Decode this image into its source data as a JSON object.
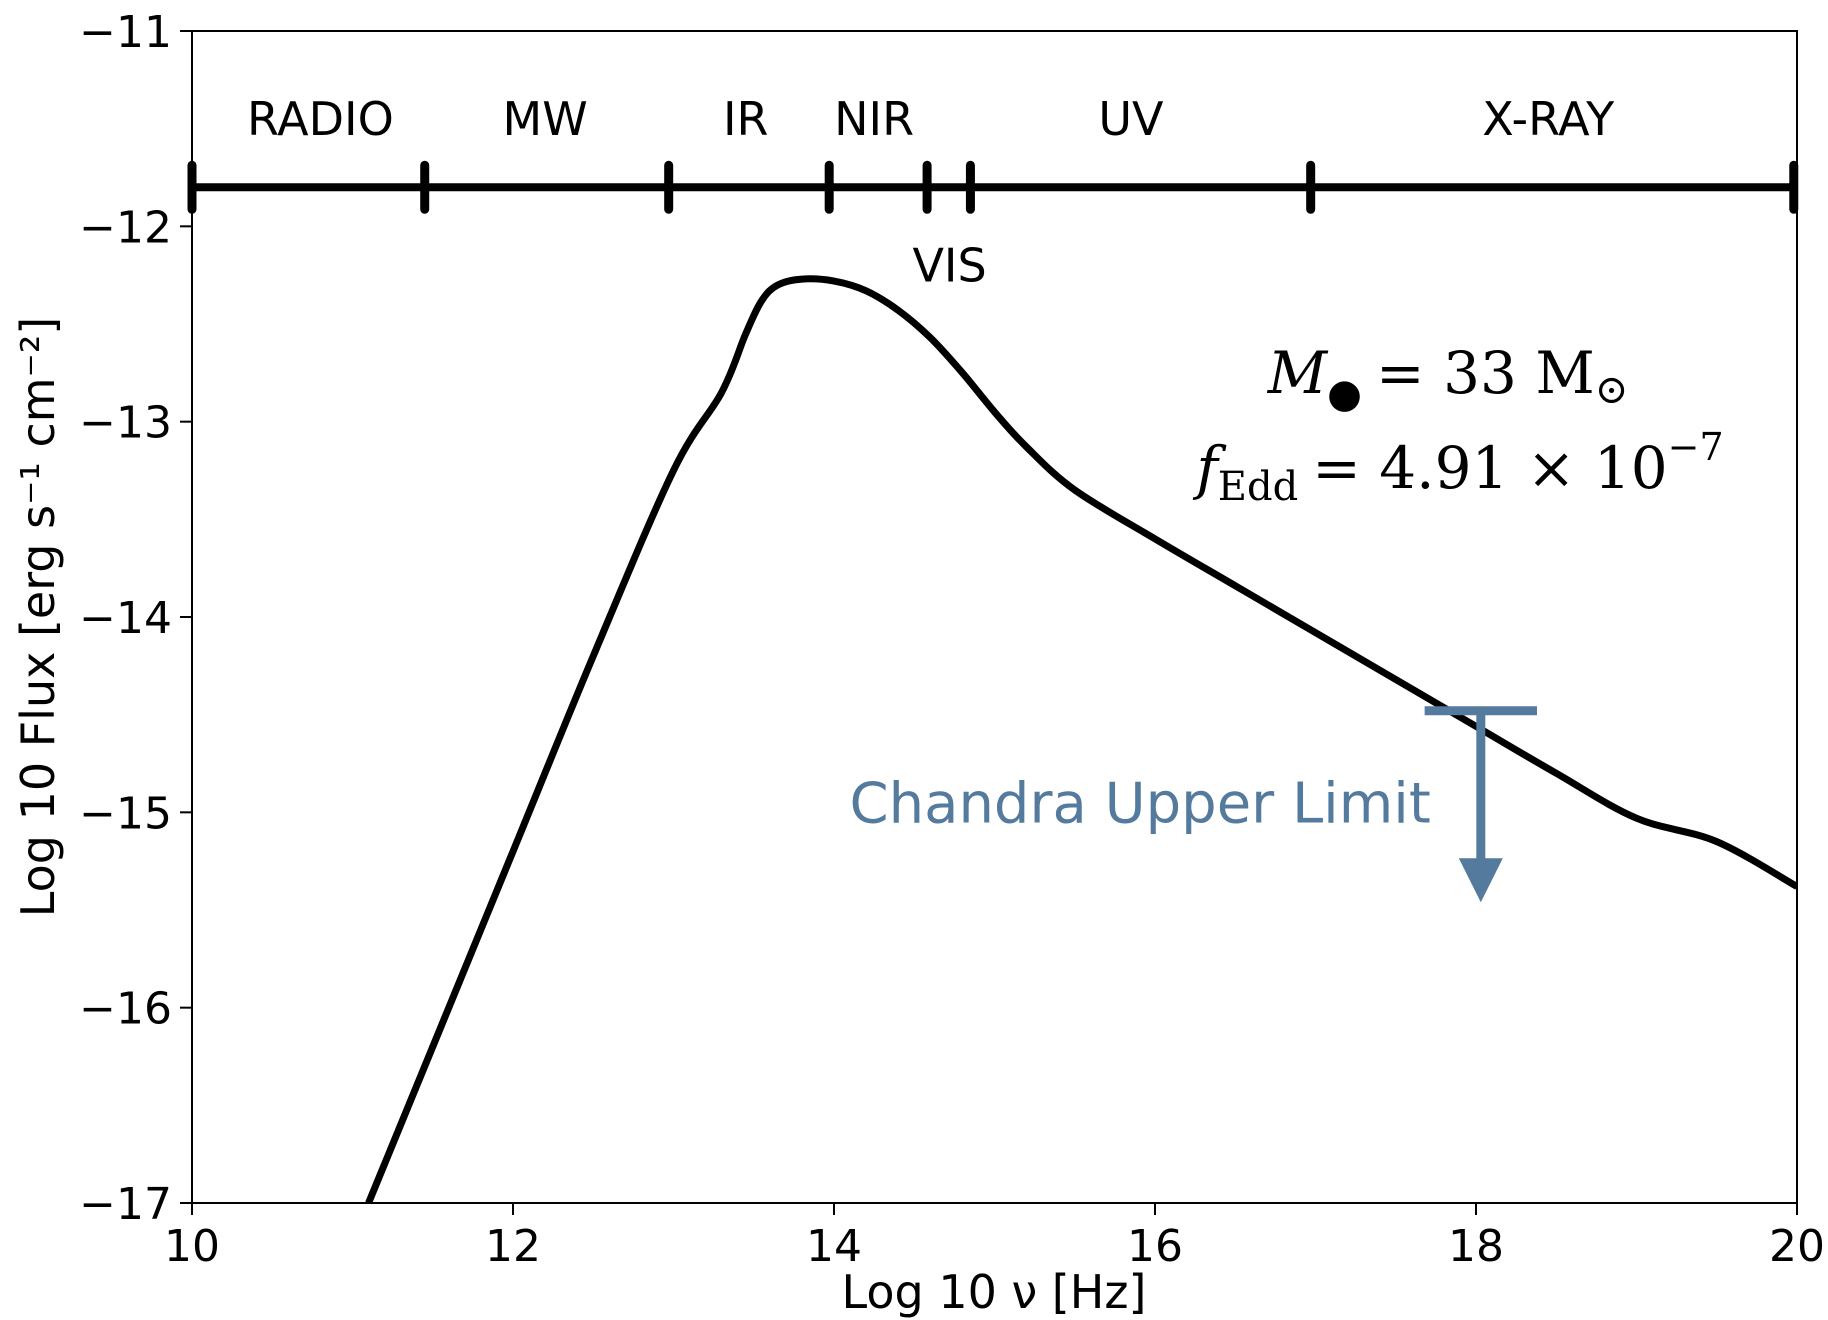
{
  "chart_data": {
    "type": "line",
    "xlabel": "Log 10 ν [Hz]",
    "ylabel": "Log 10 Flux [erg s⁻¹ cm⁻²]",
    "xlim": [
      10,
      20
    ],
    "ylim": [
      -17,
      -11
    ],
    "xticks": [
      10,
      12,
      14,
      16,
      18,
      20
    ],
    "yticks": [
      -11,
      -12,
      -13,
      -14,
      -15,
      -16,
      -17
    ],
    "xtick_labels": [
      "10",
      "12",
      "14",
      "16",
      "18",
      "20"
    ],
    "ytick_labels": [
      "−11",
      "−12",
      "−13",
      "−14",
      "−15",
      "−16",
      "−17"
    ],
    "grid": false,
    "series": [
      {
        "color": "#000000",
        "x": [
          11.1,
          11.5,
          12.0,
          12.5,
          13.0,
          13.3,
          13.45,
          13.55,
          13.65,
          13.8,
          14.0,
          14.2,
          14.4,
          14.6,
          14.8,
          15.0,
          15.2,
          15.5,
          16.0,
          16.5,
          17.0,
          17.5,
          18.0,
          18.5,
          19.0,
          19.5,
          20.0
        ],
        "y": [
          -17.0,
          -16.2,
          -15.2,
          -14.2,
          -13.25,
          -12.85,
          -12.55,
          -12.38,
          -12.3,
          -12.27,
          -12.28,
          -12.33,
          -12.43,
          -12.57,
          -12.75,
          -12.95,
          -13.13,
          -13.35,
          -13.6,
          -13.84,
          -14.08,
          -14.32,
          -14.56,
          -14.8,
          -15.03,
          -15.15,
          -15.38
        ]
      }
    ],
    "spectral_bands": {
      "y": -11.8,
      "boundaries": [
        10,
        11.45,
        12.97,
        13.97,
        14.58,
        14.85,
        16.97,
        19.98
      ],
      "labels": [
        {
          "text": "RADIO",
          "x": 10.8,
          "y": -11.45
        },
        {
          "text": "MW",
          "x": 12.2,
          "y": -11.45
        },
        {
          "text": "IR",
          "x": 13.45,
          "y": -11.45
        },
        {
          "text": "NIR",
          "x": 14.25,
          "y": -11.45
        },
        {
          "text": "UV",
          "x": 15.85,
          "y": -11.45
        },
        {
          "text": "X-RAY",
          "x": 18.45,
          "y": -11.45
        },
        {
          "text": "VIS",
          "x": 14.72,
          "y": -12.2
        }
      ]
    },
    "upper_limit": {
      "label": "Chandra Upper Limit",
      "color": "#547a9d",
      "x": 18.03,
      "y": -14.48,
      "x_span": [
        17.68,
        18.38
      ],
      "arrow_to_y": -15.45
    },
    "annotations": {
      "mass": {
        "symbol": "M",
        "subscript": "●",
        "value": "= 33 M",
        "unit": "⊙"
      },
      "eddington": {
        "symbol": "f",
        "subscript": "Edd",
        "value": "= 4.91 × 10",
        "exponent": "−7"
      }
    }
  }
}
